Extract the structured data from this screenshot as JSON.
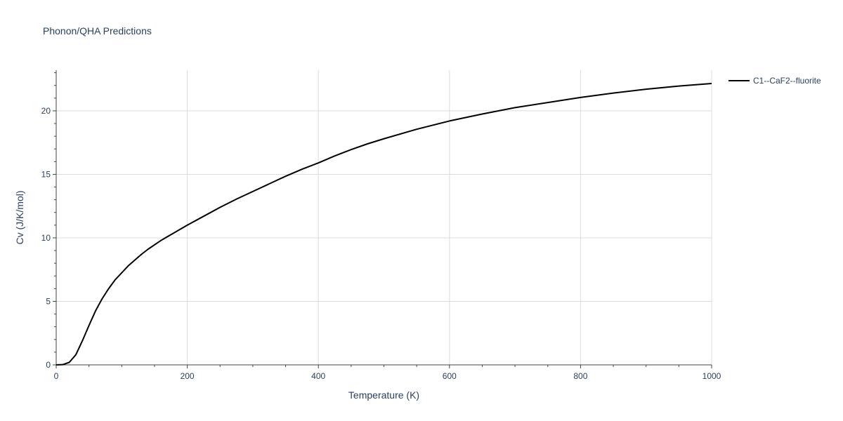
{
  "chart_data": {
    "type": "line",
    "title": "Phonon/QHA Predictions",
    "xlabel": "Temperature (K)",
    "ylabel": "Cv (J/K/mol)",
    "xlim": [
      0,
      1000
    ],
    "ylim": [
      0,
      23.2
    ],
    "xticks": [
      0,
      200,
      400,
      600,
      800,
      1000
    ],
    "xtick_labels": [
      "0",
      "200",
      "400",
      "600",
      "800",
      "1000"
    ],
    "yticks": [
      0,
      5,
      10,
      15,
      20
    ],
    "ytick_labels": [
      "0",
      "5",
      "10",
      "15",
      "20"
    ],
    "grid": true,
    "legend_position": "top-right, outside plot",
    "series": [
      {
        "name": "C1--CaF2--fluorite",
        "color": "#000000",
        "x": [
          0,
          10,
          20,
          30,
          40,
          50,
          60,
          70,
          80,
          90,
          100,
          110,
          120,
          130,
          140,
          150,
          160,
          170,
          180,
          200,
          225,
          250,
          275,
          300,
          325,
          350,
          375,
          400,
          425,
          450,
          475,
          500,
          550,
          600,
          650,
          700,
          750,
          800,
          850,
          900,
          950,
          1000
        ],
        "y": [
          0,
          0.02,
          0.2,
          0.8,
          1.9,
          3.1,
          4.25,
          5.2,
          6.0,
          6.7,
          7.25,
          7.8,
          8.25,
          8.7,
          9.1,
          9.45,
          9.8,
          10.1,
          10.4,
          11.0,
          11.7,
          12.4,
          13.05,
          13.65,
          14.25,
          14.85,
          15.4,
          15.9,
          16.45,
          16.95,
          17.4,
          17.8,
          18.55,
          19.2,
          19.75,
          20.25,
          20.65,
          21.05,
          21.4,
          21.7,
          21.95,
          22.15
        ]
      }
    ]
  }
}
